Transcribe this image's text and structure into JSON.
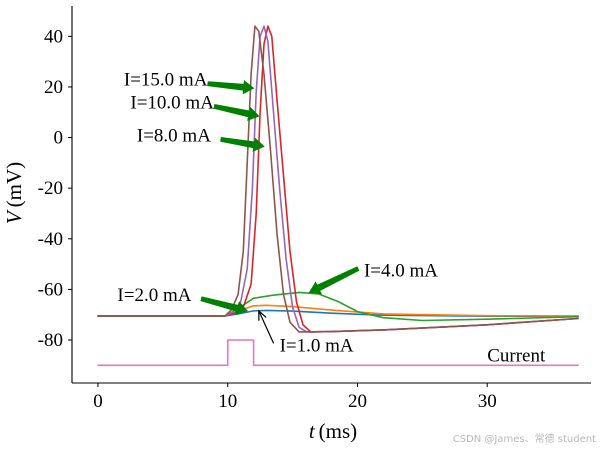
{
  "chart_data": {
    "type": "line",
    "title": "",
    "xlabel_symbol": "t",
    "xlabel_unit": "(ms)",
    "ylabel_symbol": "V",
    "ylabel_unit": "(mV)",
    "xlim": [
      -2,
      38
    ],
    "ylim": [
      -97,
      52
    ],
    "xticks": [
      0,
      10,
      20,
      30
    ],
    "yticks": [
      40,
      20,
      0,
      -20,
      -40,
      -60,
      -80
    ],
    "ytick_labels": [
      "40",
      "20",
      "0",
      "-20",
      "-40",
      "-60",
      "-80"
    ],
    "series": [
      {
        "name": "I=1.0 mA",
        "color": "#1f77b4",
        "points": [
          [
            0,
            -70.5
          ],
          [
            9.8,
            -70.5
          ],
          [
            11,
            -69.5
          ],
          [
            12,
            -68.5
          ],
          [
            13,
            -68.3
          ],
          [
            15,
            -68.6
          ],
          [
            18,
            -69.4
          ],
          [
            22,
            -70.2
          ],
          [
            30,
            -70.6
          ],
          [
            37,
            -70.6
          ]
        ]
      },
      {
        "name": "I=2.0 mA",
        "color": "#ff7f0e",
        "points": [
          [
            0,
            -70.5
          ],
          [
            9.8,
            -70.5
          ],
          [
            10.8,
            -68.5
          ],
          [
            12,
            -66.5
          ],
          [
            13,
            -66.3
          ],
          [
            15,
            -66.8
          ],
          [
            18,
            -68.2
          ],
          [
            22,
            -69.7
          ],
          [
            30,
            -70.4
          ],
          [
            37,
            -70.5
          ]
        ]
      },
      {
        "name": "I=4.0 mA",
        "color": "#2ca02c",
        "points": [
          [
            0,
            -70.5
          ],
          [
            9.8,
            -70.5
          ],
          [
            10.8,
            -67.5
          ],
          [
            12,
            -63.5
          ],
          [
            13.5,
            -62.3
          ],
          [
            15.5,
            -61.2
          ],
          [
            17,
            -61.8
          ],
          [
            18.5,
            -64.8
          ],
          [
            20,
            -68.8
          ],
          [
            22,
            -71.2
          ],
          [
            25,
            -72.3
          ],
          [
            30,
            -71.8
          ],
          [
            37,
            -70.8
          ]
        ]
      },
      {
        "name": "I=8.0 mA",
        "color": "#d62728",
        "points": [
          [
            0,
            -70.5
          ],
          [
            9.8,
            -70.5
          ],
          [
            10.5,
            -69.5
          ],
          [
            11.2,
            -67
          ],
          [
            11.8,
            -58
          ],
          [
            12.2,
            -30
          ],
          [
            12.5,
            10
          ],
          [
            12.8,
            37
          ],
          [
            13.1,
            44
          ],
          [
            13.4,
            40
          ],
          [
            13.8,
            15
          ],
          [
            14.3,
            -15
          ],
          [
            14.8,
            -45
          ],
          [
            15.3,
            -65
          ],
          [
            15.8,
            -74
          ],
          [
            16.4,
            -76.8
          ],
          [
            18,
            -76.7
          ],
          [
            22,
            -76
          ],
          [
            30,
            -74
          ],
          [
            37,
            -71.5
          ]
        ]
      },
      {
        "name": "I=10.0 mA",
        "color": "#9467bd",
        "points": [
          [
            0,
            -70.5
          ],
          [
            9.8,
            -70.5
          ],
          [
            10.4,
            -69
          ],
          [
            11,
            -65
          ],
          [
            11.5,
            -52
          ],
          [
            11.9,
            -20
          ],
          [
            12.2,
            18
          ],
          [
            12.5,
            40
          ],
          [
            12.8,
            44
          ],
          [
            13.1,
            38
          ],
          [
            13.5,
            12
          ],
          [
            14,
            -20
          ],
          [
            14.5,
            -48
          ],
          [
            15,
            -67
          ],
          [
            15.5,
            -75
          ],
          [
            16.1,
            -76.8
          ],
          [
            18,
            -76.7
          ],
          [
            22,
            -76
          ],
          [
            30,
            -74
          ],
          [
            37,
            -71.5
          ]
        ]
      },
      {
        "name": "I=15.0 mA",
        "color": "#8c564b",
        "points": [
          [
            0,
            -70.5
          ],
          [
            9.8,
            -70.5
          ],
          [
            10.3,
            -68
          ],
          [
            10.8,
            -62
          ],
          [
            11.2,
            -45
          ],
          [
            11.5,
            -10
          ],
          [
            11.8,
            25
          ],
          [
            12.1,
            44
          ],
          [
            12.4,
            42
          ],
          [
            12.8,
            25
          ],
          [
            13.3,
            -5
          ],
          [
            13.8,
            -38
          ],
          [
            14.3,
            -62
          ],
          [
            14.8,
            -73
          ],
          [
            15.5,
            -76.8
          ],
          [
            18,
            -76.7
          ],
          [
            22,
            -76
          ],
          [
            30,
            -74
          ],
          [
            37,
            -71.5
          ]
        ]
      },
      {
        "name": "Current",
        "color": "#e377c2",
        "points": [
          [
            0,
            -90
          ],
          [
            10,
            -90
          ],
          [
            10,
            -80
          ],
          [
            12,
            -80
          ],
          [
            12,
            -90
          ],
          [
            37,
            -90
          ]
        ]
      }
    ],
    "annotations": [
      {
        "name": "label-i15",
        "text": "I=15.0 mA",
        "text_at": [
          2,
          20.5
        ],
        "arrow_to": [
          12.0,
          19.5
        ],
        "style": "wedge",
        "color": "#008000"
      },
      {
        "name": "label-i10",
        "text": "I=10.0 mA",
        "text_at": [
          2.5,
          11.5
        ],
        "arrow_to": [
          12.4,
          8.5
        ],
        "style": "wedge",
        "color": "#008000"
      },
      {
        "name": "label-i8",
        "text": "I=8.0 mA",
        "text_at": [
          3,
          -1.5
        ],
        "arrow_to": [
          12.8,
          -3.5
        ],
        "style": "wedge",
        "color": "#008000"
      },
      {
        "name": "label-i4",
        "text": "I=4.0 mA",
        "text_at": [
          20.5,
          -55
        ],
        "arrow_to": [
          16.3,
          -61.2
        ],
        "style": "wedge",
        "color": "#008000"
      },
      {
        "name": "label-i2",
        "text": "I=2.0 mA",
        "text_at": [
          1.5,
          -64.5
        ],
        "arrow_to": [
          11.5,
          -68.5
        ],
        "style": "wedge",
        "color": "#008000"
      },
      {
        "name": "label-i1",
        "text": "I=1.0 mA",
        "text_at": [
          14,
          -84.5
        ],
        "arrow_to": [
          12.4,
          -68.5
        ],
        "style": "line",
        "color": "#000000"
      },
      {
        "name": "label-current",
        "text": "Current",
        "text_at": [
          30,
          -88.5
        ],
        "arrow_to": null,
        "style": "none",
        "color": "#000000"
      }
    ]
  },
  "watermark": "CSDN @James、常德 student"
}
